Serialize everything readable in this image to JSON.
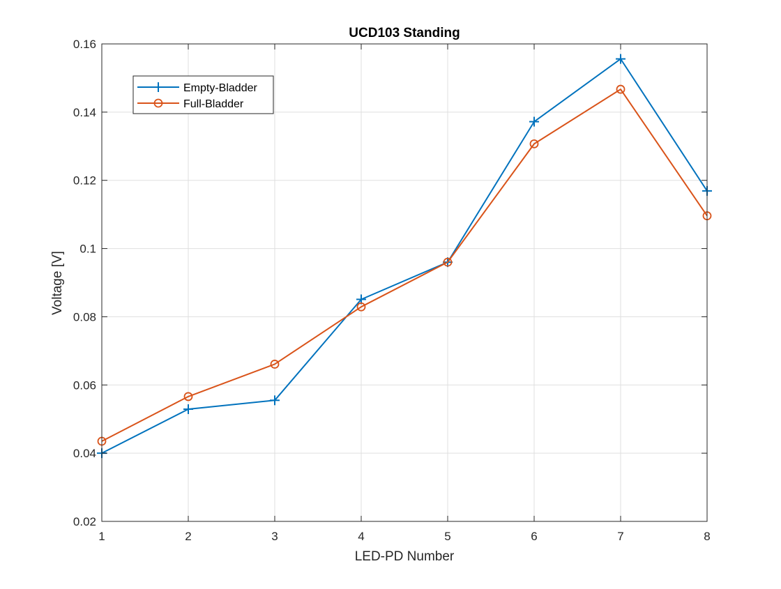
{
  "chart_data": {
    "type": "line",
    "title": "UCD103 Standing",
    "xlabel": "LED-PD Number",
    "ylabel": "Voltage [V]",
    "x": [
      1,
      2,
      3,
      4,
      5,
      6,
      7,
      8
    ],
    "xlim": [
      1,
      8
    ],
    "ylim": [
      0.02,
      0.16
    ],
    "xticks": [
      1,
      2,
      3,
      4,
      5,
      6,
      7,
      8
    ],
    "xtick_labels": [
      "1",
      "2",
      "3",
      "4",
      "5",
      "6",
      "7",
      "8"
    ],
    "yticks": [
      0.02,
      0.04,
      0.06,
      0.08,
      0.1,
      0.12,
      0.14,
      0.16
    ],
    "ytick_labels": [
      "0.02",
      "0.04",
      "0.06",
      "0.08",
      "0.1",
      "0.12",
      "0.14",
      "0.16"
    ],
    "grid": true,
    "legend_position": "top-left",
    "series": [
      {
        "name": "Empty-Bladder",
        "marker": "plus",
        "color": "#0072BD",
        "values": [
          0.04,
          0.0529,
          0.0555,
          0.0851,
          0.096,
          0.1372,
          0.1556,
          0.1169
        ]
      },
      {
        "name": "Full-Bladder",
        "marker": "circle",
        "color": "#D95319",
        "values": [
          0.0435,
          0.0566,
          0.0661,
          0.0829,
          0.096,
          0.1307,
          0.1467,
          0.1096
        ]
      }
    ]
  }
}
